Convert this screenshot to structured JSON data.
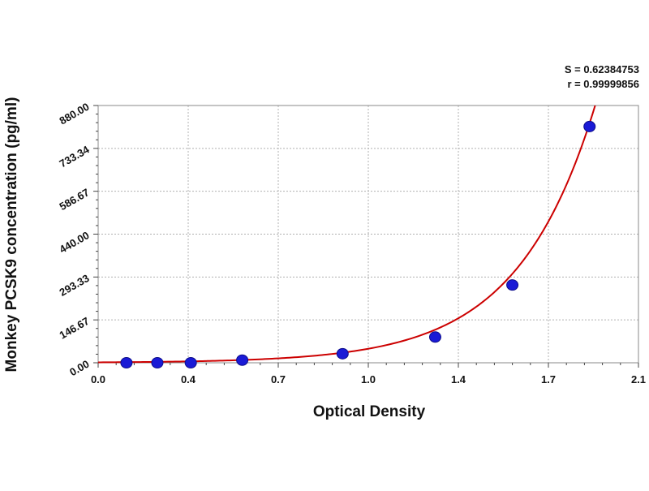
{
  "stats": {
    "s_label": "S = 0.62384753",
    "r_label": "r = 0.99999856"
  },
  "chart_data": {
    "type": "scatter",
    "title": "",
    "xlabel": "Optical Density",
    "ylabel": "Monkey PCSK9 concentration (pg/ml)",
    "xlim": [
      0.0,
      2.1
    ],
    "ylim": [
      0.0,
      880.0
    ],
    "x_ticks": [
      "0.0",
      "0.4",
      "0.7",
      "1.0",
      "1.4",
      "1.7",
      "2.1"
    ],
    "x_tick_values": [
      0.0,
      0.35,
      0.7,
      1.05,
      1.4,
      1.75,
      2.1
    ],
    "y_ticks": [
      "0.00",
      "146.67",
      "293.33",
      "440.00",
      "586.67",
      "733.34",
      "880.00"
    ],
    "y_tick_values": [
      0,
      146.67,
      293.33,
      440.0,
      586.67,
      733.34,
      880.0
    ],
    "grid": true,
    "series": [
      {
        "kind": "points",
        "color": "#1a1ad6",
        "points": [
          {
            "x": 0.11,
            "y": 0
          },
          {
            "x": 0.23,
            "y": 0
          },
          {
            "x": 0.36,
            "y": 0
          },
          {
            "x": 0.56,
            "y": 9
          },
          {
            "x": 0.95,
            "y": 31
          },
          {
            "x": 1.31,
            "y": 88
          },
          {
            "x": 1.61,
            "y": 266
          },
          {
            "x": 1.91,
            "y": 808
          }
        ]
      },
      {
        "kind": "fit-curve",
        "color": "#cc0000",
        "model": "exponential",
        "a": 1.5,
        "b": 3.3
      }
    ]
  }
}
